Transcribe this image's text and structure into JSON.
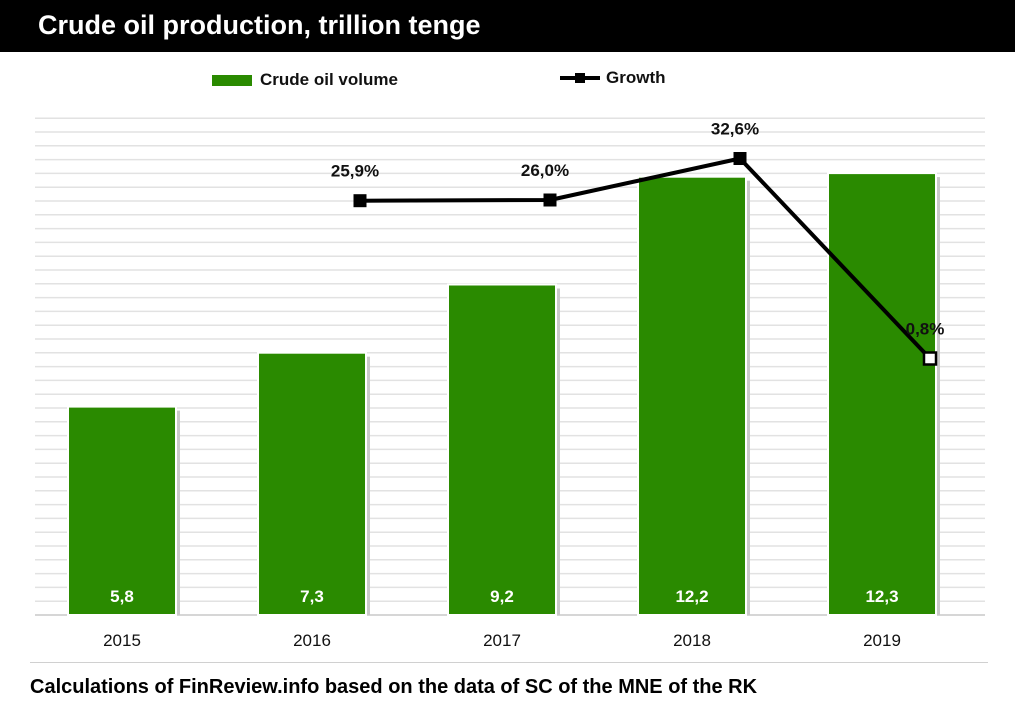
{
  "header": {
    "title": "Crude oil production, trillion tenge"
  },
  "footer": {
    "source": "Calculations of FinReview.info based on the data of SC of the MNE of the RK"
  },
  "colors": {
    "bar": "#2a8a00",
    "line": "#000000"
  },
  "chart_data": {
    "type": "bar",
    "title": "Crude oil production, trillion tenge",
    "categories": [
      "2015",
      "2016",
      "2017",
      "2018",
      "2019"
    ],
    "series": [
      {
        "name": "Crude oil volume",
        "type": "bar",
        "values": [
          5.8,
          7.3,
          9.2,
          12.2,
          12.3
        ],
        "labels": [
          "5,8",
          "7,3",
          "9,2",
          "12,2",
          "12,3"
        ]
      },
      {
        "name": "Growth",
        "type": "line",
        "values": [
          null,
          25.9,
          26.0,
          32.6,
          0.8
        ],
        "labels": [
          "",
          "25,9%",
          "26,0%",
          "32,6%",
          "0,8%"
        ]
      }
    ],
    "legend_position": "top",
    "grid": true,
    "ylim": [
      0,
      14
    ],
    "y2lim": [
      -40,
      40
    ]
  }
}
